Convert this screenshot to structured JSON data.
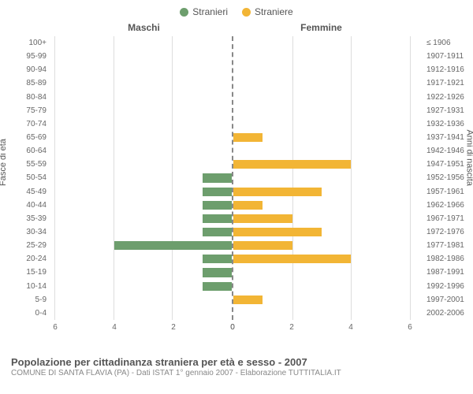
{
  "legend": {
    "male": {
      "label": "Stranieri",
      "color": "#6d9e6d"
    },
    "female": {
      "label": "Straniere",
      "color": "#f2b535"
    }
  },
  "headers": {
    "left": "Maschi",
    "right": "Femmine"
  },
  "axis_labels": {
    "left": "Fasce di età",
    "right": "Anni di nascita"
  },
  "age_groups": [
    "100+",
    "95-99",
    "90-94",
    "85-89",
    "80-84",
    "75-79",
    "70-74",
    "65-69",
    "60-64",
    "55-59",
    "50-54",
    "45-49",
    "40-44",
    "35-39",
    "30-34",
    "25-29",
    "20-24",
    "15-19",
    "10-14",
    "5-9",
    "0-4"
  ],
  "birth_years": [
    "≤ 1906",
    "1907-1911",
    "1912-1916",
    "1917-1921",
    "1922-1926",
    "1927-1931",
    "1932-1936",
    "1937-1941",
    "1942-1946",
    "1947-1951",
    "1952-1956",
    "1957-1961",
    "1962-1966",
    "1967-1971",
    "1972-1976",
    "1977-1981",
    "1982-1986",
    "1987-1991",
    "1992-1996",
    "1997-2001",
    "2002-2006"
  ],
  "male_values": [
    0,
    0,
    0,
    0,
    0,
    0,
    0,
    0,
    0,
    0,
    1,
    1,
    1,
    1,
    1,
    4,
    1,
    1,
    1,
    0,
    0
  ],
  "female_values": [
    0,
    0,
    0,
    0,
    0,
    0,
    0,
    1,
    0,
    4,
    0,
    3,
    1,
    2,
    3,
    2,
    4,
    0,
    0,
    1,
    0
  ],
  "chart": {
    "type": "pyramid-bar",
    "xlim": [
      0,
      6
    ],
    "xticks": [
      0,
      2,
      4,
      6
    ],
    "grid_color": "#dddddd",
    "center_line_color": "#888888",
    "background_color": "#ffffff",
    "bar_colors": {
      "male": "#6d9e6d",
      "female": "#f2b535"
    },
    "label_fontsize": 10,
    "header_fontsize": 12
  },
  "footer": {
    "title": "Popolazione per cittadinanza straniera per età e sesso - 2007",
    "subtitle": "COMUNE DI SANTA FLAVIA (PA) - Dati ISTAT 1° gennaio 2007 - Elaborazione TUTTITALIA.IT"
  }
}
